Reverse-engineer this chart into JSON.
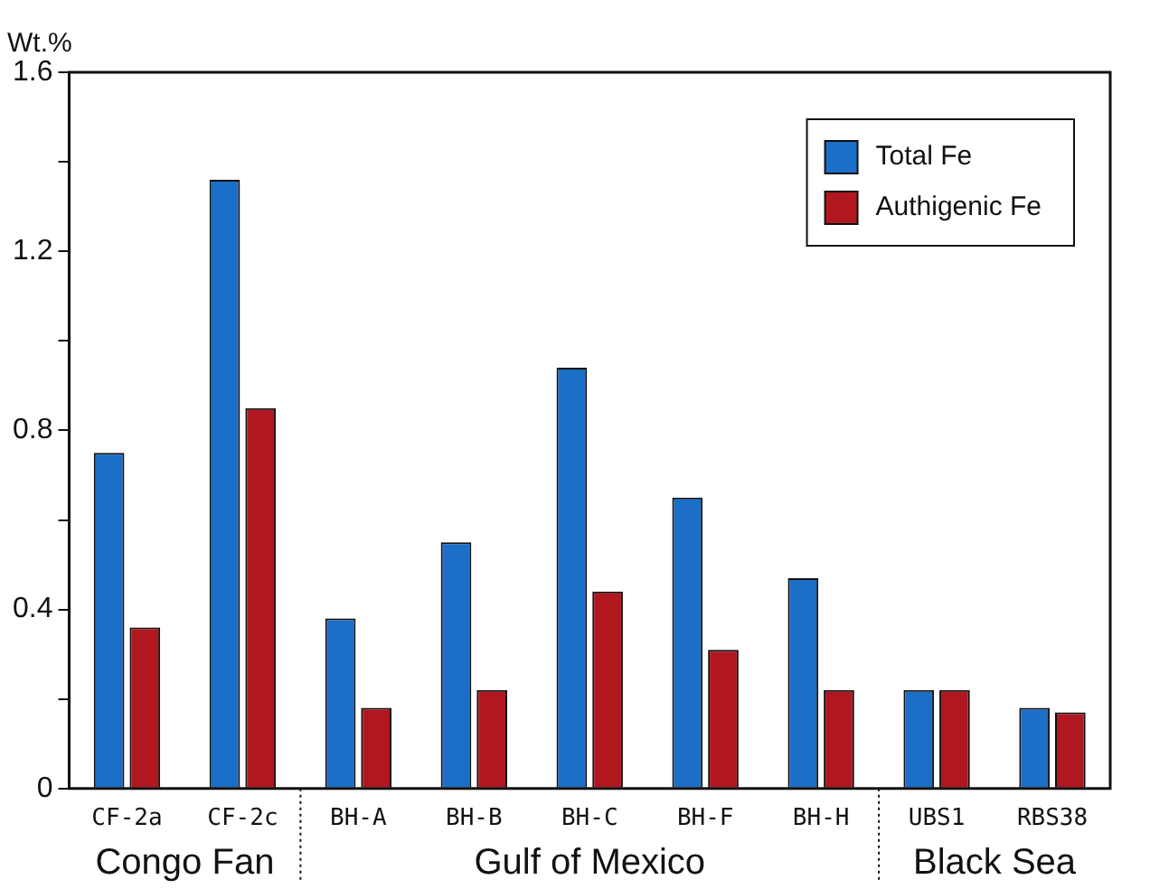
{
  "chart_data": {
    "type": "bar",
    "ylabel": "Wt.%",
    "categories": [
      "CF-2a",
      "CF-2c",
      "BH-A",
      "BH-B",
      "BH-C",
      "BH-F",
      "BH-H",
      "UBS1",
      "RBS38"
    ],
    "series": [
      {
        "name": "Total Fe",
        "color": "#1c6fc7",
        "values": [
          0.75,
          1.36,
          0.38,
          0.55,
          0.94,
          0.65,
          0.47,
          0.22,
          0.18
        ]
      },
      {
        "name": "Authigenic Fe",
        "color": "#b0171f",
        "values": [
          0.36,
          0.85,
          0.18,
          0.22,
          0.44,
          0.31,
          0.22,
          0.22,
          0.17
        ]
      }
    ],
    "ylim": [
      0,
      1.6
    ],
    "yticks": [
      0,
      {
        "value": 0.2,
        "label": null
      },
      0.4,
      {
        "value": 0.6,
        "label": null
      },
      0.8,
      {
        "value": 1.0,
        "label": null
      },
      1.2,
      {
        "value": 1.4,
        "label": null
      },
      1.6
    ],
    "annotations": [
      "Congo Fan",
      "Gulf of Mexico",
      "Black Sea"
    ],
    "grid": false,
    "legend": "top right"
  }
}
